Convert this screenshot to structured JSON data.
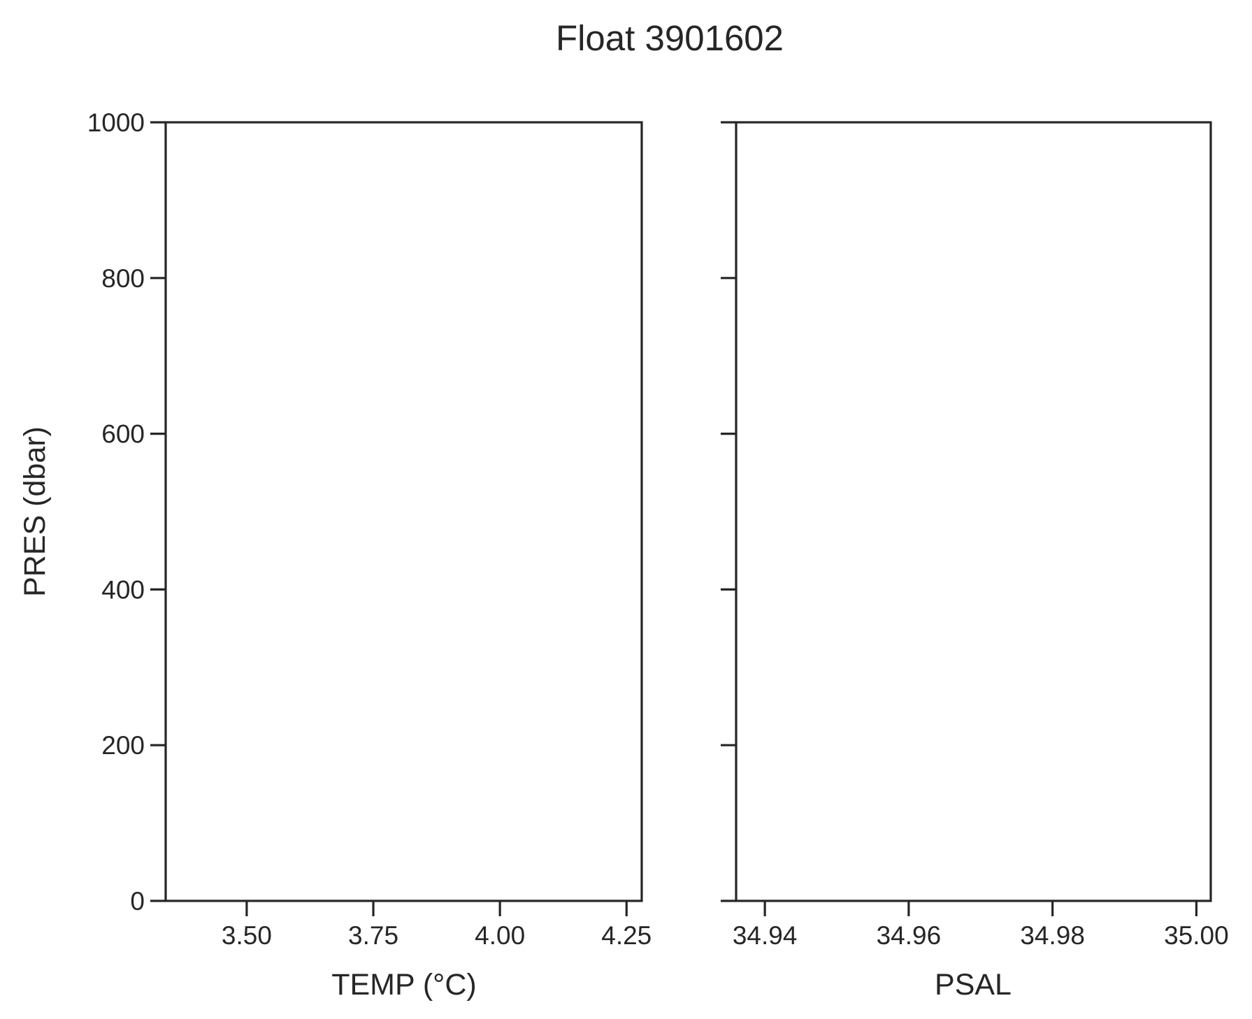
{
  "figure": {
    "title": "Float 3901602",
    "background": "#ffffff",
    "axis_color": "#262626"
  },
  "chart_data": [
    {
      "type": "line",
      "xlabel": "TEMP (°C)",
      "ylabel": "PRES (dbar)",
      "xlim": [
        3.34,
        4.28
      ],
      "ylim": [
        1000,
        0
      ],
      "y_inverted": true,
      "xticks": [
        3.5,
        3.75,
        4.0,
        4.25
      ],
      "xtick_labels": [
        "3.50",
        "3.75",
        "4.00",
        "4.25"
      ],
      "yticks": [
        0,
        200,
        400,
        600,
        800,
        1000
      ],
      "ytick_labels": [
        "0",
        "200",
        "400",
        "600",
        "800",
        "1000"
      ],
      "grid": false,
      "series": []
    },
    {
      "type": "line",
      "xlabel": "PSAL",
      "ylabel": "",
      "xlim": [
        34.936,
        35.002
      ],
      "ylim": [
        1000,
        0
      ],
      "y_inverted": true,
      "sharey": true,
      "xticks": [
        34.94,
        34.96,
        34.98,
        35.0
      ],
      "xtick_labels": [
        "34.94",
        "34.96",
        "34.98",
        "35.00"
      ],
      "yticks": [
        0,
        200,
        400,
        600,
        800,
        1000
      ],
      "ytick_labels": [],
      "grid": false,
      "series": []
    }
  ]
}
